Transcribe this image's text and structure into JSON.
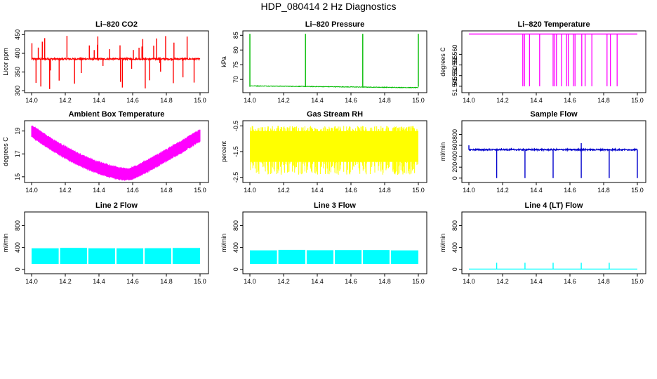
{
  "figure_title": "HDP_080414  2 Hz Diagnostics",
  "chart_data": [
    {
      "type": "line",
      "title": "Li–820 CO2",
      "ylabel": "Licor ppm",
      "xlim": [
        14.0,
        15.0
      ],
      "ylim": [
        295,
        460
      ],
      "xticks": [
        "14.0",
        "14.2",
        "14.4",
        "14.6",
        "14.8",
        "15.0"
      ],
      "yticks": [
        "300",
        "350",
        "400",
        "450"
      ],
      "yticks_values": [
        300,
        350,
        400,
        450
      ],
      "color": "#ff0000",
      "series": [
        {
          "name": "CO2",
          "baseline": 385,
          "noise": 4,
          "spikes_up_to": 450,
          "spikes_down_to": 300
        }
      ]
    },
    {
      "type": "line",
      "title": "Li–820 Pressure",
      "ylabel": "kPa",
      "xlim": [
        14.0,
        15.0
      ],
      "ylim": [
        65.5,
        86.5
      ],
      "xticks": [
        "14.0",
        "14.2",
        "14.4",
        "14.6",
        "14.8",
        "15.0"
      ],
      "yticks": [
        "70",
        "75",
        "80",
        "85"
      ],
      "yticks_values": [
        70,
        75,
        80,
        85
      ],
      "color": "#00bb00",
      "series": [
        {
          "name": "Pressure",
          "baseline_start": 67.8,
          "baseline_end": 67.2,
          "spikes_x": [
            14.0,
            14.33,
            14.67,
            15.0
          ],
          "spike_to": 85.5
        }
      ]
    },
    {
      "type": "line",
      "title": "Li–820 Temperature",
      "ylabel": "degrees C",
      "xlim": [
        14.0,
        15.0
      ],
      "ylim": [
        51.542,
        51.571
      ],
      "xticks": [
        "14.0",
        "14.2",
        "14.4",
        "14.6",
        "14.8",
        "15.0"
      ],
      "yticks": [
        "51.545",
        "51.550",
        "51.555",
        "51.560"
      ],
      "yticks_values": [
        51.545,
        51.55,
        51.555,
        51.56
      ],
      "color": "#ff00ff",
      "series": [
        {
          "name": "Temperature",
          "baseline": 51.5695,
          "drop_to": 51.545
        }
      ]
    },
    {
      "type": "line",
      "title": "Ambient Box Temperature",
      "ylabel": "degrees C",
      "xlim": [
        14.0,
        15.0
      ],
      "ylim": [
        14.5,
        19.9
      ],
      "xticks": [
        "14.0",
        "14.2",
        "14.4",
        "14.6",
        "14.8",
        "15.0"
      ],
      "yticks": [
        "15",
        "17",
        "19"
      ],
      "yticks_values": [
        15,
        17,
        19
      ],
      "color": "#ff00ff",
      "series": [
        {
          "name": "Ambient",
          "start": 19.0,
          "min": 15.2,
          "min_at": 14.58,
          "end": 18.6,
          "band": 0.8
        }
      ]
    },
    {
      "type": "line",
      "title": "Gas Stream RH",
      "ylabel": "percent",
      "xlim": [
        14.0,
        15.0
      ],
      "ylim": [
        -2.7,
        -0.3
      ],
      "xticks": [
        "14.0",
        "14.2",
        "14.4",
        "14.6",
        "14.8",
        "15.0"
      ],
      "yticks": [
        "-2.5",
        "-1.5",
        "-0.5"
      ],
      "yticks_values": [
        -2.5,
        -1.5,
        -0.5
      ],
      "color": "#ffff00",
      "series": [
        {
          "name": "RH",
          "low": -1.9,
          "high": -0.7,
          "extreme_low": -2.4,
          "extreme_high": -0.5
        }
      ]
    },
    {
      "type": "line",
      "title": "Sample Flow",
      "ylabel": "ml/min",
      "xlim": [
        14.0,
        15.0
      ],
      "ylim": [
        -80,
        1050
      ],
      "xticks": [
        "14.0",
        "14.2",
        "14.4",
        "14.6",
        "14.8",
        "15.0"
      ],
      "yticks": [
        "0",
        "200",
        "400",
        "600",
        "800"
      ],
      "yticks_values": [
        0,
        200,
        400,
        600,
        800
      ],
      "color": "#0000cc",
      "series": [
        {
          "name": "Sample",
          "baseline": 520,
          "dips_x": [
            14.165,
            14.333,
            14.5,
            14.667,
            14.833,
            15.0
          ],
          "dip_to": 0,
          "peak": 640
        }
      ]
    },
    {
      "type": "line",
      "title": "Line 2 Flow",
      "ylabel": "ml/min",
      "xlim": [
        14.0,
        15.0
      ],
      "ylim": [
        -80,
        1050
      ],
      "xticks": [
        "14.0",
        "14.2",
        "14.4",
        "14.6",
        "14.8",
        "15.0"
      ],
      "yticks": [
        "0",
        "400",
        "800"
      ],
      "yticks_values": [
        0,
        400,
        800
      ],
      "color": "#00ffff",
      "series": [
        {
          "name": "Line 2",
          "low": 100,
          "high": 390,
          "gaps_x": [
            14.165,
            14.333,
            14.5,
            14.667,
            14.833
          ]
        }
      ]
    },
    {
      "type": "line",
      "title": "Line 3 Flow",
      "ylabel": "ml/min",
      "xlim": [
        14.0,
        15.0
      ],
      "ylim": [
        -80,
        1050
      ],
      "xticks": [
        "14.0",
        "14.2",
        "14.4",
        "14.6",
        "14.8",
        "15.0"
      ],
      "yticks": [
        "0",
        "400",
        "800"
      ],
      "yticks_values": [
        0,
        400,
        800
      ],
      "color": "#00ffff",
      "series": [
        {
          "name": "Line 3",
          "low": 100,
          "high": 350,
          "gaps_x": [
            14.165,
            14.333,
            14.5,
            14.667,
            14.833
          ]
        }
      ]
    },
    {
      "type": "line",
      "title": "Line 4 (LT) Flow",
      "ylabel": "ml/min",
      "xlim": [
        14.0,
        15.0
      ],
      "ylim": [
        -80,
        1050
      ],
      "xticks": [
        "14.0",
        "14.2",
        "14.4",
        "14.6",
        "14.8",
        "15.0"
      ],
      "yticks": [
        "0",
        "400",
        "800"
      ],
      "yticks_values": [
        0,
        400,
        800
      ],
      "color": "#00ffff",
      "series": [
        {
          "name": "Line 4",
          "baseline": 5,
          "spikes_x": [
            14.165,
            14.333,
            14.5,
            14.667,
            14.833
          ],
          "spike_to": 120
        }
      ]
    }
  ]
}
